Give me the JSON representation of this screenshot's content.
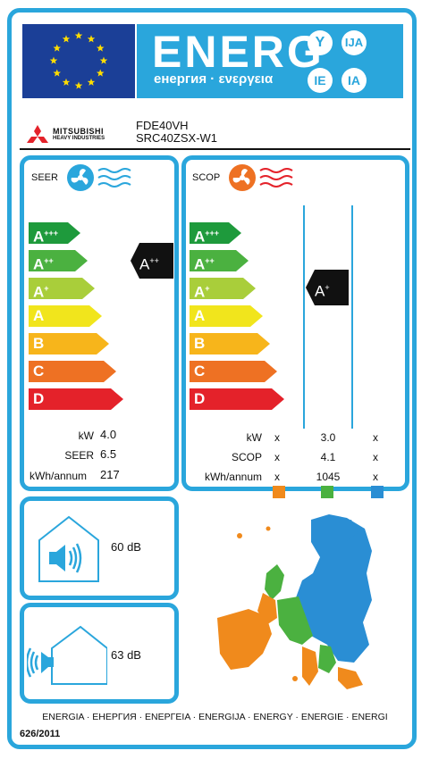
{
  "header": {
    "energ_word": "ENERG",
    "energy_subtitle": "енергия · ενεργεια",
    "lang_codes": [
      "Y",
      "IJA",
      "IE",
      "IA"
    ],
    "colors": {
      "eu_blue": "#1b3f97",
      "banner_blue": "#2aa6dc",
      "star_yellow": "#ffdd00"
    }
  },
  "brand": {
    "name_line1": "MITSUBISHI",
    "name_line2": "HEAVY INDUSTRIES",
    "model_indoor": "FDE40VH",
    "model_outdoor": "SRC40ZSX-W1"
  },
  "cooling": {
    "title": "SEER",
    "icon": "fan-snowflake-icon",
    "classes": [
      {
        "letter": "A",
        "plus": "+++",
        "color": "#1e9a3c"
      },
      {
        "letter": "A",
        "plus": "++",
        "color": "#4bb140"
      },
      {
        "letter": "A",
        "plus": "+",
        "color": "#a9ce3a"
      },
      {
        "letter": "A",
        "plus": "",
        "color": "#f1e51c"
      },
      {
        "letter": "B",
        "plus": "",
        "color": "#f7b51b"
      },
      {
        "letter": "C",
        "plus": "",
        "color": "#ee7123"
      },
      {
        "letter": "D",
        "plus": "",
        "color": "#e4222a"
      }
    ],
    "rating": {
      "letter": "A",
      "plus": "++"
    },
    "kw_label": "kW",
    "kw_value": "4.0",
    "seer_label": "SEER",
    "seer_value": "6.5",
    "kwh_label": "kWh/annum",
    "kwh_value": "217"
  },
  "heating": {
    "title": "SCOP",
    "icon": "fan-heat-icon",
    "classes": [
      {
        "letter": "A",
        "plus": "+++",
        "color": "#1e9a3c"
      },
      {
        "letter": "A",
        "plus": "++",
        "color": "#4bb140"
      },
      {
        "letter": "A",
        "plus": "+",
        "color": "#a9ce3a"
      },
      {
        "letter": "A",
        "plus": "",
        "color": "#f1e51c"
      },
      {
        "letter": "B",
        "plus": "",
        "color": "#f7b51b"
      },
      {
        "letter": "C",
        "plus": "",
        "color": "#ee7123"
      },
      {
        "letter": "D",
        "plus": "",
        "color": "#e4222a"
      }
    ],
    "rating": {
      "letter": "A",
      "plus": "+"
    },
    "kw_label": "kW",
    "scop_label": "SCOP",
    "kwh_label": "kWh/annum",
    "columns": [
      {
        "kw": "x",
        "scop": "x",
        "kwh": "x",
        "color": "#f08a1c"
      },
      {
        "kw": "3.0",
        "scop": "4.1",
        "kwh": "1045",
        "color": "#4bb140"
      },
      {
        "kw": "x",
        "scop": "x",
        "kwh": "x",
        "color": "#2a8ed4"
      }
    ]
  },
  "noise": {
    "indoor": {
      "value": "60 dB",
      "icon": "indoor-speaker-house-icon"
    },
    "outdoor": {
      "value": "63 dB",
      "icon": "outdoor-speaker-house-icon"
    }
  },
  "footer": {
    "languages": "ENERGIA · ЕНЕРГИЯ · ΕΝΕΡΓΕΙΑ · ENERGIJA · ENERGY · ENERGIE · ENERGI",
    "regulation": "626/2011"
  }
}
